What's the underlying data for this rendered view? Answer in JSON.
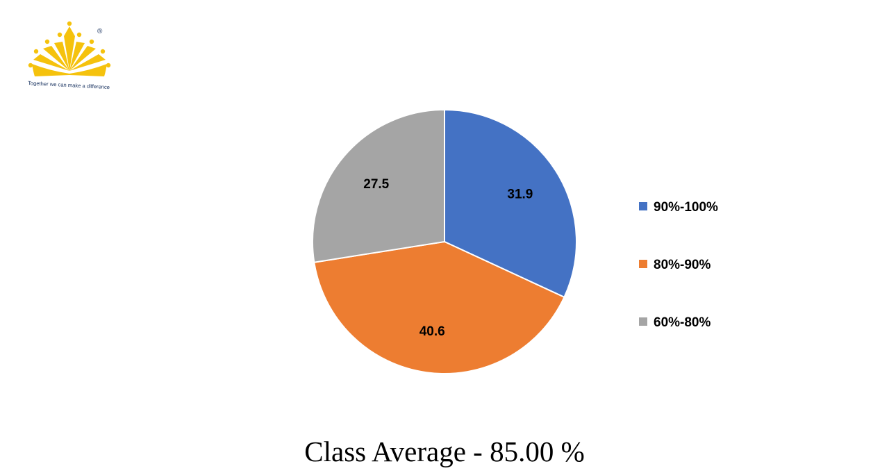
{
  "logo": {
    "tagline": "Together we can make a difference",
    "registered_mark": "®",
    "color": "#F5C20D"
  },
  "chart_data": {
    "type": "pie",
    "categories": [
      "90%-100%",
      "80%-90%",
      "60%-80%"
    ],
    "values": [
      31.9,
      40.6,
      27.5
    ],
    "colors": [
      "#4472C4",
      "#ED7D31",
      "#A5A5A5"
    ],
    "data_labels": [
      "31.9",
      "40.6",
      "27.5"
    ],
    "legend_position": "right",
    "start_angle": "12 o'clock",
    "direction": "clockwise"
  },
  "caption": "Class Average - 85.00 %"
}
